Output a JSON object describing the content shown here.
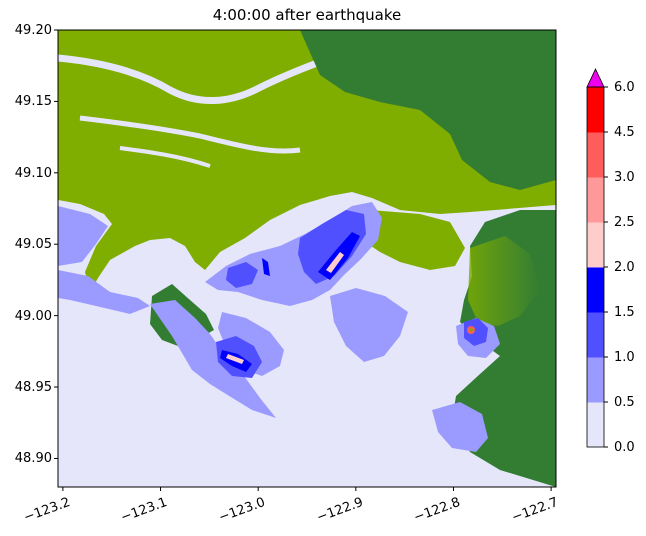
{
  "chart_data": {
    "type": "heatmap",
    "title": "4:00:00 after earthquake",
    "xlabel": "",
    "ylabel": "",
    "xlim": [
      -123.205,
      -122.695
    ],
    "ylim": [
      48.88,
      49.2
    ],
    "x_ticks": [
      -123.2,
      -123.1,
      -123.0,
      -122.9,
      -122.8,
      -122.7
    ],
    "x_tick_labels": [
      "−123.2",
      "−123.1",
      "−123.0",
      "−122.9",
      "−122.8",
      "−122.7"
    ],
    "y_ticks": [
      48.9,
      48.95,
      49.0,
      49.05,
      49.1,
      49.15,
      49.2
    ],
    "y_tick_labels": [
      "48.90",
      "48.95",
      "49.00",
      "49.05",
      "49.10",
      "49.15",
      "49.20"
    ],
    "colorbar": {
      "levels": [
        0.0,
        0.5,
        1.0,
        1.5,
        2.0,
        2.5,
        3.0,
        4.5,
        6.0
      ],
      "tick_labels": [
        "0.0",
        "0.5",
        "1.0",
        "1.5",
        "2.0",
        "2.5",
        "3.0",
        "4.5",
        "6.0"
      ],
      "colors": [
        "#e6e6fa",
        "#9b9bff",
        "#5050ff",
        "#0000ff",
        "#ffcccc",
        "#ff9999",
        "#ff5c5c",
        "#ff0000"
      ],
      "extend_max_color": "#ee00ee"
    },
    "land_colors": {
      "lowland": "#7fad00",
      "highland": "#337d33"
    }
  }
}
